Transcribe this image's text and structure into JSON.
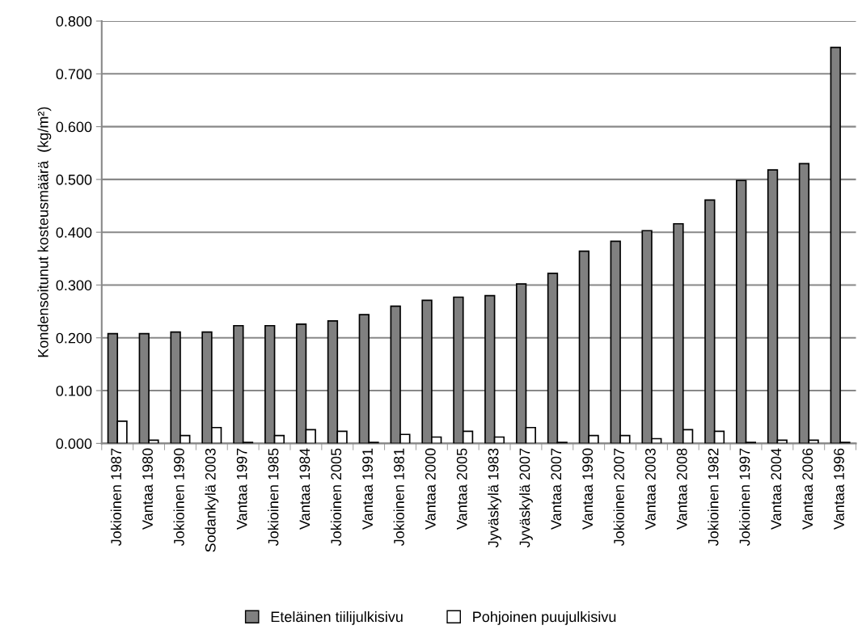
{
  "chart_data": {
    "type": "bar",
    "ylabel": "Kondensoitunut kosteusmäärä  (kg/m²)",
    "categories": [
      "Jokioinen 1987",
      "Vantaa 1980",
      "Jokioinen 1990",
      "Sodankylä 2003",
      "Vantaa 1997",
      "Jokioinen 1985",
      "Vantaa 1984",
      "Jokioinen 2005",
      "Vantaa 1991",
      "Jokioinen 1981",
      "Vantaa 2000",
      "Vantaa 2005",
      "Jyväskylä 1983",
      "Jyväskylä 2007",
      "Vantaa 2007",
      "Vantaa 1990",
      "Jokioinen 2007",
      "Vantaa 2003",
      "Vantaa 2008",
      "Jokioinen 1982",
      "Jokioinen 1997",
      "Vantaa 2004",
      "Vantaa 2006",
      "Vantaa 1996"
    ],
    "series": [
      {
        "name": "Eteläinen tiilijulkisivu",
        "color": "#808080",
        "values": [
          0.208,
          0.208,
          0.211,
          0.211,
          0.223,
          0.223,
          0.226,
          0.232,
          0.244,
          0.26,
          0.271,
          0.277,
          0.28,
          0.302,
          0.322,
          0.364,
          0.383,
          0.403,
          0.416,
          0.461,
          0.498,
          0.518,
          0.53,
          0.75
        ]
      },
      {
        "name": "Pohjoinen puujulkisivu",
        "color": "#ffffff",
        "values": [
          0.042,
          0.006,
          0.015,
          0.03,
          0.002,
          0.015,
          0.026,
          0.023,
          0.002,
          0.017,
          0.012,
          0.023,
          0.012,
          0.03,
          0.002,
          0.015,
          0.015,
          0.009,
          0.026,
          0.023,
          0.002,
          0.006,
          0.006,
          0.002
        ]
      }
    ],
    "ylim": [
      0,
      0.8
    ],
    "yticks": [
      {
        "value": 0,
        "label": "0.000"
      },
      {
        "value": 0.1,
        "label": "0.100"
      },
      {
        "value": 0.2,
        "label": "0.200"
      },
      {
        "value": 0.3,
        "label": "0.300"
      },
      {
        "value": 0.4,
        "label": "0.400"
      },
      {
        "value": 0.5,
        "label": "0.500"
      },
      {
        "value": 0.6,
        "label": "0.600"
      },
      {
        "value": 0.7,
        "label": "0.700"
      },
      {
        "value": 0.8,
        "label": "0.800"
      }
    ],
    "grid": "y",
    "legend": "bottom"
  }
}
